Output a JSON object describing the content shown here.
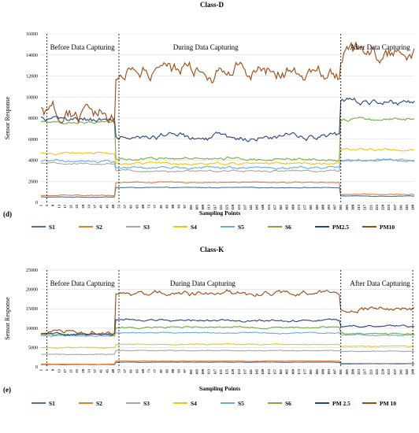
{
  "chart_data": [
    {
      "type": "line",
      "panel_label": "(d)",
      "title": "Class-D",
      "ylabel": "Sensor Response",
      "xlabel": "Sampling Points",
      "ylim": [
        0,
        16000
      ],
      "yticks": [
        0,
        2000,
        4000,
        6000,
        8000,
        10000,
        12000,
        14000,
        16000
      ],
      "xlim": [
        1,
        250
      ],
      "xticks": [
        1,
        5,
        9,
        13,
        17,
        21,
        25,
        29,
        33,
        37,
        41,
        45,
        49,
        53,
        57,
        61,
        65,
        69,
        73,
        77,
        81,
        85,
        89,
        93,
        97,
        101,
        105,
        109,
        113,
        117,
        121,
        125,
        129,
        133,
        137,
        141,
        145,
        149,
        153,
        157,
        161,
        165,
        169,
        173,
        177,
        181,
        185,
        189,
        193,
        197,
        201,
        205,
        209,
        213,
        217,
        221,
        225,
        229,
        233,
        237,
        241,
        245,
        249
      ],
      "grid": true,
      "legend_position": "bottom",
      "annotations": [
        {
          "text": "Before Data Capturing",
          "x": 5
        },
        {
          "text": "During Data Capturing",
          "x": 87
        },
        {
          "text": "After Data Capturing",
          "x": 205
        }
      ],
      "dividers": [
        5,
        53,
        201
      ],
      "phase_breaks": [
        50,
        200
      ],
      "series": [
        {
          "name": "S1",
          "color": "#4a6fa5",
          "before": 500,
          "during": 1400,
          "after": 600,
          "noise": 25
        },
        {
          "name": "S2",
          "color": "#e07b39",
          "before": 650,
          "during": 1900,
          "after": 750,
          "noise": 35
        },
        {
          "name": "S3",
          "color": "#a5a5a5",
          "before": 3700,
          "during": 3000,
          "after": 4000,
          "noise": 80
        },
        {
          "name": "S4",
          "color": "#f2c318",
          "before": 4700,
          "during": 3700,
          "after": 5000,
          "noise": 100
        },
        {
          "name": "S5",
          "color": "#6fa8dc",
          "before": 3900,
          "during": 3300,
          "after": 4000,
          "noise": 100
        },
        {
          "name": "S6",
          "color": "#70ad47",
          "before": 7600,
          "during": 4100,
          "after": 7900,
          "noise": 120
        },
        {
          "name": "PM2.5",
          "color": "#264478",
          "before": 7900,
          "during": 6200,
          "after": 9600,
          "noise": 260
        },
        {
          "name": "PM10",
          "color": "#9e480e",
          "before": 8400,
          "during": 12400,
          "after": 14200,
          "noise": 650
        }
      ]
    },
    {
      "type": "line",
      "panel_label": "(e)",
      "title": "Class-K",
      "ylabel": "Sensor Response",
      "xlabel": "Sampling Points",
      "ylim": [
        0,
        25000
      ],
      "yticks": [
        0,
        5000,
        10000,
        15000,
        20000,
        25000
      ],
      "xlim": [
        1,
        250
      ],
      "xticks": [
        1,
        5,
        9,
        13,
        17,
        21,
        25,
        29,
        33,
        37,
        41,
        45,
        49,
        53,
        57,
        61,
        65,
        69,
        73,
        77,
        81,
        85,
        89,
        93,
        97,
        101,
        105,
        109,
        113,
        117,
        121,
        125,
        129,
        133,
        137,
        141,
        145,
        149,
        153,
        157,
        161,
        165,
        169,
        173,
        177,
        181,
        185,
        189,
        193,
        197,
        201,
        205,
        209,
        213,
        217,
        221,
        225,
        229,
        233,
        237,
        241,
        245,
        249
      ],
      "grid": true,
      "legend_position": "bottom",
      "annotations": [
        {
          "text": "Before Data Capturing",
          "x": 5
        },
        {
          "text": "During Data Capturing",
          "x": 85
        },
        {
          "text": "After Data Capturing",
          "x": 205
        }
      ],
      "dividers": [
        5,
        53,
        201,
        249
      ],
      "phase_breaks": [
        50,
        200
      ],
      "series": [
        {
          "name": "S1",
          "color": "#4a6fa5",
          "before": 600,
          "during": 1200,
          "after": 800,
          "noise": 30
        },
        {
          "name": "S2",
          "color": "#e07b39",
          "before": 700,
          "during": 1500,
          "after": 900,
          "noise": 40
        },
        {
          "name": "S3",
          "color": "#a5a5a5",
          "before": 3200,
          "during": 4200,
          "after": 4000,
          "noise": 80
        },
        {
          "name": "S4",
          "color": "#f2c318",
          "before": 5000,
          "during": 5800,
          "after": 5300,
          "noise": 100
        },
        {
          "name": "S5",
          "color": "#6fa8dc",
          "before": 8000,
          "during": 8800,
          "after": 8200,
          "noise": 120
        },
        {
          "name": "S6",
          "color": "#70ad47",
          "before": 8300,
          "during": 10200,
          "after": 8600,
          "noise": 180
        },
        {
          "name": "PM 2.5",
          "color": "#264478",
          "before": 8500,
          "during": 12000,
          "after": 10500,
          "noise": 250
        },
        {
          "name": "PM 10",
          "color": "#9e480e",
          "before": 8700,
          "during": 19000,
          "after": 15000,
          "noise": 500
        }
      ]
    }
  ]
}
